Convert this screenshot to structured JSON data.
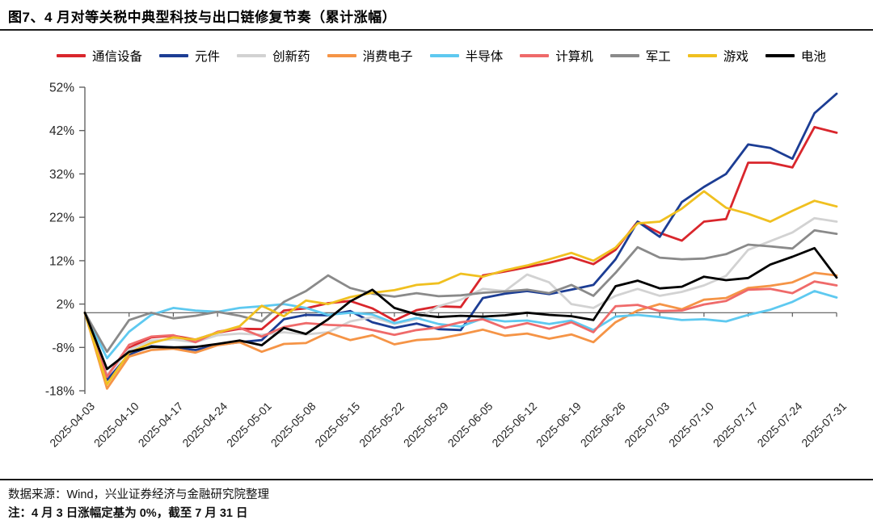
{
  "title": "图7、4 月对等关税中典型科技与出口链修复节奏（累计涨幅）",
  "footer": {
    "source": "数据来源：Wind，兴业证券经济与金融研究院整理",
    "note": "注：4 月 3 日涨幅定基为 0%，截至 7 月 31 日"
  },
  "chart_data": {
    "type": "line",
    "title": "图7、4 月对等关税中典型科技与出口链修复节奏（累计涨幅）",
    "legend_position": "top",
    "grid": false,
    "axis_color": "#595959",
    "baseline": 0,
    "ylim": [
      -18,
      52
    ],
    "yticks": [
      52,
      42,
      32,
      22,
      12,
      2,
      -8,
      -18
    ],
    "ytick_suffix": "%",
    "x_tick_labels": [
      "2025-04-03",
      "2025-04-10",
      "2025-04-17",
      "2025-04-24",
      "2025-05-01",
      "2025-05-08",
      "2025-05-15",
      "2025-05-22",
      "2025-05-29",
      "2025-06-05",
      "2025-06-12",
      "2025-06-19",
      "2025-06-26",
      "2025-07-03",
      "2025-07-10",
      "2025-07-17",
      "2025-07-24",
      "2025-07-31"
    ],
    "sample_dates": [
      "2025-04-03",
      "2025-04-07",
      "2025-04-10",
      "2025-04-14",
      "2025-04-17",
      "2025-04-21",
      "2025-04-24",
      "2025-04-28",
      "2025-05-01",
      "2025-05-06",
      "2025-05-08",
      "2025-05-12",
      "2025-05-15",
      "2025-05-19",
      "2025-05-22",
      "2025-05-26",
      "2025-05-29",
      "2025-06-03",
      "2025-06-05",
      "2025-06-09",
      "2025-06-12",
      "2025-06-16",
      "2025-06-19",
      "2025-06-23",
      "2025-06-26",
      "2025-06-30",
      "2025-07-03",
      "2025-07-07",
      "2025-07-10",
      "2025-07-14",
      "2025-07-17",
      "2025-07-21",
      "2025-07-24",
      "2025-07-28",
      "2025-07-31"
    ],
    "unit": "percent cumulative change, 2025-04-03 = 0%",
    "series": [
      {
        "name": "通信设备",
        "color": "#D9262C",
        "values": [
          0,
          -14.5,
          -8.1,
          -5.7,
          -5.3,
          -6.2,
          -4.6,
          -3.7,
          -3.8,
          0.5,
          1.0,
          2.2,
          2.7,
          1.0,
          -1.8,
          0.6,
          1.5,
          1.3,
          8.6,
          9.5,
          10.5,
          11.5,
          12.8,
          11.2,
          14.5,
          21.0,
          18.4,
          16.6,
          21.0,
          21.6,
          34.6,
          34.6,
          33.5,
          42.8,
          41.5
        ]
      },
      {
        "name": "元件",
        "color": "#1C3D94",
        "values": [
          0,
          -15.5,
          -9.6,
          -7.7,
          -8.0,
          -8.6,
          -7.4,
          -6.8,
          -6.3,
          -1.5,
          -0.5,
          -0.6,
          0.4,
          -2.2,
          -3.5,
          -2.5,
          -3.8,
          -4.0,
          3.4,
          4.4,
          5.0,
          4.3,
          5.3,
          6.4,
          12.3,
          21.0,
          17.5,
          25.5,
          29.0,
          32.0,
          38.8,
          38.0,
          35.5,
          46.0,
          50.5
        ]
      },
      {
        "name": "创新药",
        "color": "#D2D2D2",
        "values": [
          0,
          -14.5,
          -8.5,
          -6.4,
          -6.2,
          -6.8,
          -5.2,
          -4.8,
          -5.1,
          -4.5,
          -5.0,
          -4.5,
          -2.0,
          -1.0,
          -2.6,
          -1.5,
          1.5,
          3.0,
          5.5,
          5.0,
          8.8,
          7.0,
          2.0,
          1.1,
          3.9,
          5.5,
          3.9,
          4.8,
          6.3,
          8.5,
          14.5,
          16.5,
          18.5,
          21.8,
          21.0
        ]
      },
      {
        "name": "消费电子",
        "color": "#F59446",
        "values": [
          0,
          -17.5,
          -10.1,
          -8.6,
          -8.3,
          -9.2,
          -7.5,
          -6.8,
          -9.0,
          -7.2,
          -7.0,
          -4.6,
          -6.3,
          -5.2,
          -7.3,
          -6.3,
          -6.0,
          -5.0,
          -3.9,
          -5.3,
          -4.8,
          -6.0,
          -5.0,
          -6.8,
          -2.2,
          0.5,
          2.0,
          0.8,
          3.0,
          3.4,
          5.7,
          6.2,
          7.0,
          9.2,
          8.6
        ]
      },
      {
        "name": "半导体",
        "color": "#5EC9F0",
        "values": [
          0,
          -10.5,
          -4.4,
          -0.5,
          1.1,
          0.5,
          0.2,
          1.1,
          1.5,
          2.0,
          1.1,
          -0.5,
          0.0,
          -0.4,
          -2.4,
          -1.2,
          -2.6,
          -3.2,
          -1.3,
          -2.0,
          -1.8,
          -2.6,
          -1.8,
          -4.0,
          -0.9,
          -0.5,
          -1.0,
          -1.7,
          -1.5,
          -2.0,
          -0.5,
          0.7,
          2.5,
          5.0,
          3.5
        ]
      },
      {
        "name": "计算机",
        "color": "#EF6A6A",
        "values": [
          0,
          -14.8,
          -7.4,
          -5.5,
          -5.2,
          -6.8,
          -4.4,
          -3.5,
          -5.5,
          -3.3,
          -2.4,
          -2.8,
          -3.0,
          -4.0,
          -5.1,
          -4.0,
          -3.4,
          -2.2,
          -1.5,
          -3.5,
          -2.4,
          -3.7,
          -2.2,
          -4.5,
          1.5,
          1.8,
          0.4,
          0.5,
          1.9,
          2.7,
          5.3,
          5.5,
          4.5,
          7.2,
          6.3
        ]
      },
      {
        "name": "军工",
        "color": "#8A8A8A",
        "values": [
          0,
          -9.0,
          -1.7,
          0.0,
          -1.3,
          -0.7,
          0.2,
          -0.7,
          -2.0,
          2.5,
          5.0,
          8.6,
          5.7,
          4.4,
          3.7,
          4.5,
          3.8,
          4.0,
          4.6,
          4.9,
          5.3,
          4.5,
          6.4,
          3.9,
          9.2,
          15.1,
          12.7,
          12.3,
          12.5,
          13.5,
          15.7,
          15.3,
          14.8,
          19.0,
          18.2
        ]
      },
      {
        "name": "游戏",
        "color": "#F0C020",
        "values": [
          0,
          -16.5,
          -9.2,
          -7.0,
          -5.7,
          -6.2,
          -4.6,
          -3.1,
          1.6,
          -0.8,
          2.8,
          2.0,
          3.6,
          4.6,
          5.2,
          6.4,
          6.8,
          9.0,
          8.3,
          9.8,
          10.9,
          12.3,
          13.8,
          12.0,
          15.0,
          20.6,
          21.0,
          24.0,
          28.0,
          24.2,
          22.8,
          21.0,
          23.5,
          25.8,
          24.5
        ]
      },
      {
        "name": "电池",
        "color": "#000000",
        "values": [
          0,
          -13.0,
          -9.0,
          -7.9,
          -8.0,
          -7.9,
          -7.2,
          -6.4,
          -7.5,
          -3.5,
          -4.9,
          -1.5,
          2.6,
          5.3,
          1.1,
          -0.4,
          -1.0,
          -0.7,
          -0.9,
          -0.6,
          0.0,
          -0.5,
          -0.8,
          -1.7,
          6.1,
          7.4,
          5.6,
          6.0,
          8.3,
          7.5,
          8.0,
          11.1,
          12.9,
          14.9,
          8.1
        ]
      }
    ]
  }
}
